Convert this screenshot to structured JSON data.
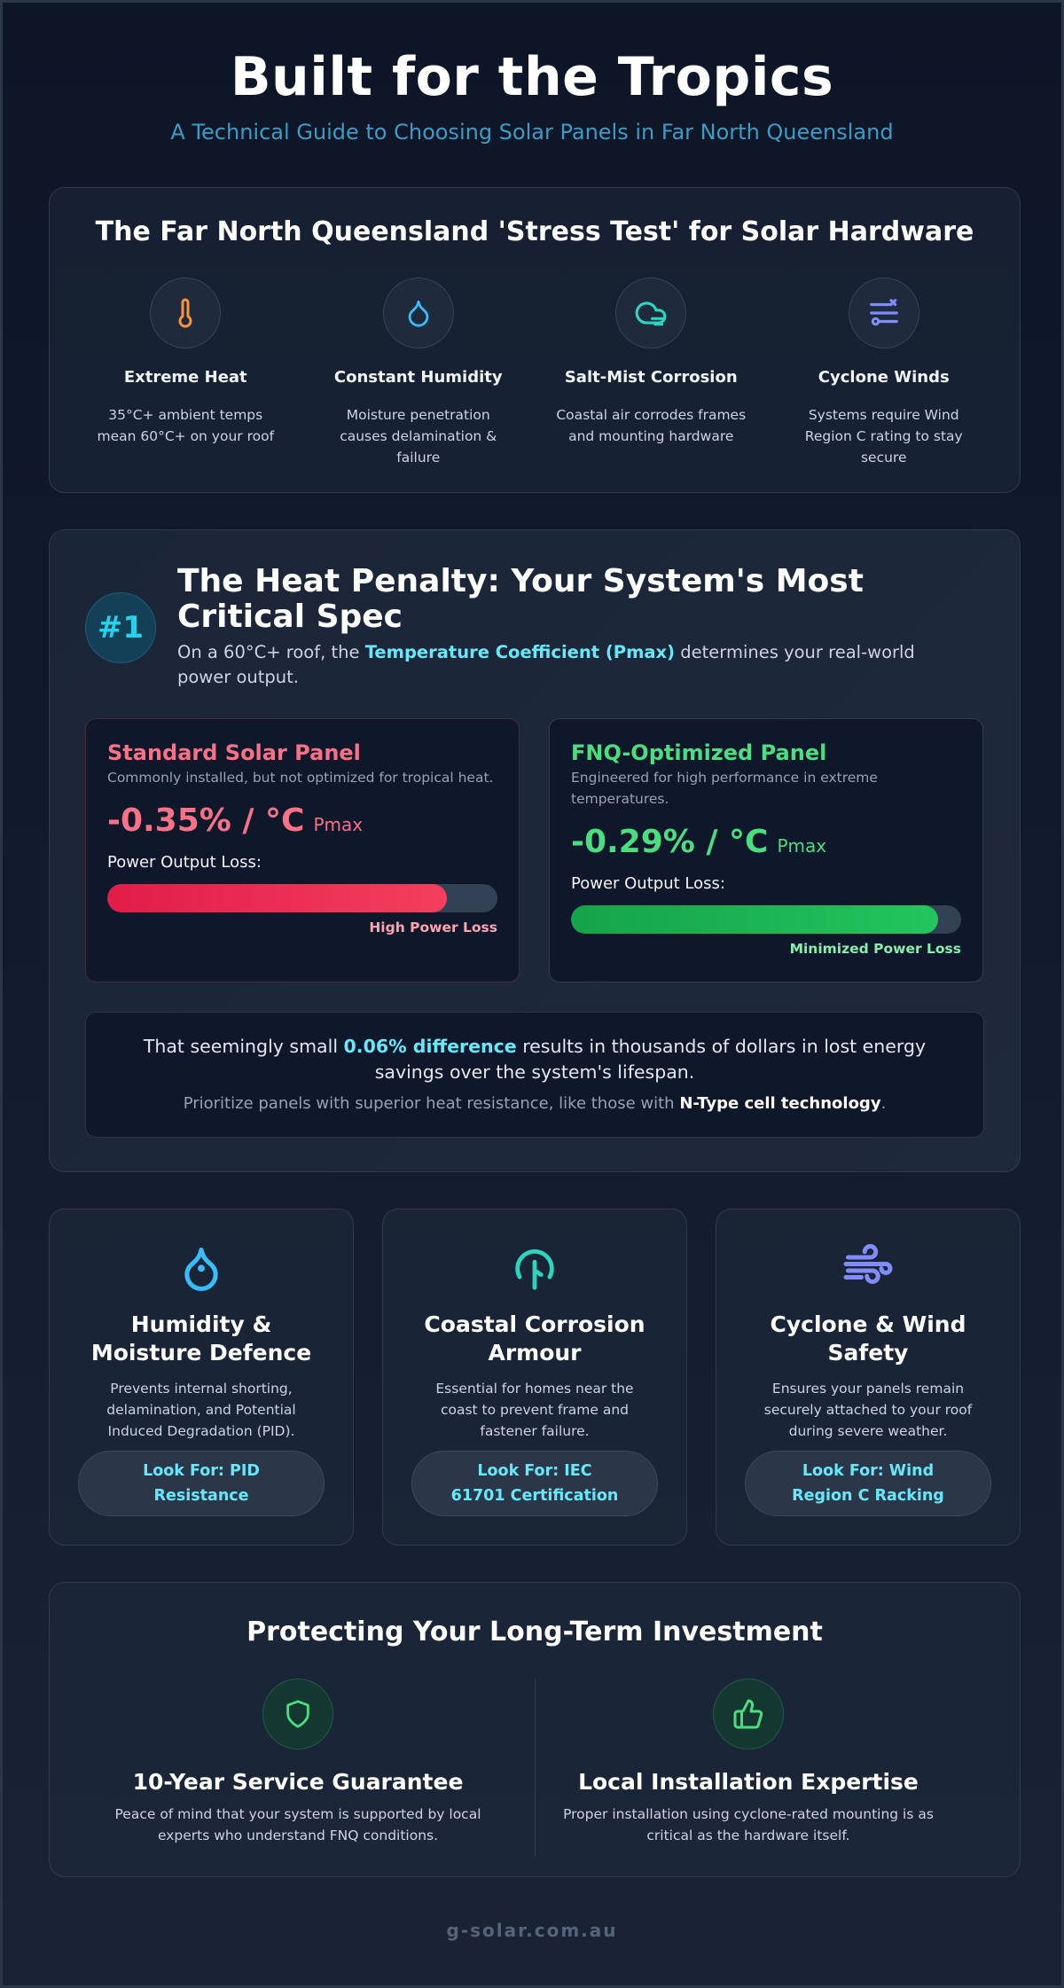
{
  "header": {
    "title": "Built for the Tropics",
    "subtitle": "A Technical Guide to Choosing Solar Panels in Far North Queensland"
  },
  "stress_test": {
    "title": "The Far North Queensland 'Stress Test' for Solar Hardware",
    "items": [
      {
        "icon": "thermometer-icon",
        "color": "#fb923c",
        "title": "Extreme Heat",
        "desc": "35°C+ ambient temps mean 60°C+ on your roof"
      },
      {
        "icon": "droplet-icon",
        "color": "#38bdf8",
        "title": "Constant Humidity",
        "desc": "Moisture penetration causes delamination & failure"
      },
      {
        "icon": "cloud-wind-icon",
        "color": "#2dd4bf",
        "title": "Salt-Mist Corrosion",
        "desc": "Coastal air corrodes frames and mounting hardware"
      },
      {
        "icon": "wind-sliders-icon",
        "color": "#818cf8",
        "title": "Cyclone Winds",
        "desc": "Systems require Wind Region C rating to stay secure"
      }
    ]
  },
  "heat_penalty": {
    "rank": "#1",
    "title": "The Heat Penalty: Your System's Most Critical Spec",
    "desc_before": "On a 60°C+ roof, the ",
    "desc_highlight": "Temperature Coefficient (Pmax)",
    "desc_after": " determines your real-world power output.",
    "standard": {
      "title": "Standard Solar Panel",
      "desc": "Commonly installed, but not optimized for tropical heat.",
      "coefficient": "-0.35% / °C",
      "unit": "Pmax",
      "loss_label": "Power Output Loss:",
      "loss_fraction": 0.87,
      "caption": "High Power Loss",
      "color": "#f87187"
    },
    "optimized": {
      "title": "FNQ-Optimized Panel",
      "desc": "Engineered for high performance in extreme temperatures.",
      "coefficient": "-0.29% / °C",
      "unit": "Pmax",
      "loss_label": "Power Output Loss:",
      "loss_fraction": 0.94,
      "caption": "Minimized Power Loss",
      "color": "#4ade80"
    },
    "difference": {
      "line1_before": "That seemingly small ",
      "line1_highlight": "0.06% difference",
      "line1_after": " results in thousands of dollars in lost energy savings over the system's lifespan.",
      "line2_before": "Prioritize panels with superior heat resistance, like those with ",
      "line2_bold": "N-Type cell technology",
      "line2_after": "."
    }
  },
  "features": [
    {
      "icon": "water-drop-icon",
      "color": "#38bdf8",
      "title": "Humidity & Moisture Defence",
      "desc": "Prevents internal shorting, delamination, and Potential Induced Degradation (PID).",
      "look_for": "Look For: PID Resistance"
    },
    {
      "icon": "shield-leaf-icon",
      "color": "#2dd4bf",
      "title": "Coastal Corrosion Armour",
      "desc": "Essential for homes near the coast to prevent frame and fastener failure.",
      "look_for": "Look For: IEC 61701 Certification"
    },
    {
      "icon": "wind-icon",
      "color": "#818cf8",
      "title": "Cyclone & Wind Safety",
      "desc": "Ensures your panels remain securely attached to your roof during severe weather.",
      "look_for": "Look For: Wind Region C Racking"
    }
  ],
  "protect": {
    "title": "Protecting Your Long-Term Investment",
    "items": [
      {
        "icon": "shield-icon",
        "title": "10-Year Service Guarantee",
        "desc": "Peace of mind that your system is supported by local experts who understand FNQ conditions."
      },
      {
        "icon": "thumbs-up-icon",
        "title": "Local Installation Expertise",
        "desc": "Proper installation using cyclone-rated mounting is as critical as the hardware itself."
      }
    ]
  },
  "footer": {
    "text": "g-solar.com.au"
  }
}
